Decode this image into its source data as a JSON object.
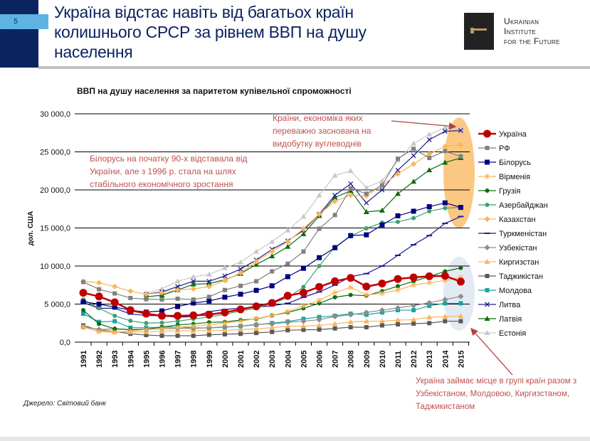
{
  "header": {
    "page_number": "5",
    "title": "Україна відстає навіть від багатьох країн колишнього СРСР за рівнем ВВП на душу населення",
    "logo_lines": [
      "Ukrainian",
      "Institute",
      "for the Future"
    ]
  },
  "annotations": {
    "belarus_note": "Білорусь на початку 90-х відставала від України, але з 1996 р. стала на шлях стабільного економічного зростання",
    "hydrocarbon_note": "Країни, економіка яких переважно заснована на видобутку вуглеводнів",
    "ukraine_group_note": "Україна займає місце в групі країн разом з Узбекістаном, Молдовою, Киргизстаном, Таджикистаном",
    "highlight_top_color": "#f9b55a",
    "highlight_bottom_color": "#dfe6f2"
  },
  "source": "Джерело: Світовий банк",
  "chart_data": {
    "type": "line",
    "title": "ВВП на душу населення за паритетом купівельної спроможності",
    "ylabel": "дол. США",
    "xlabel": "",
    "ylim": [
      0,
      30000
    ],
    "yticks": [
      "0,0",
      "5 000,0",
      "10 000,0",
      "15 000,0",
      "20 000,0",
      "25 000,0",
      "30 000,0"
    ],
    "grid": true,
    "legend_position": "right",
    "x": [
      1991,
      1992,
      1993,
      1994,
      1995,
      1996,
      1997,
      1998,
      1999,
      2000,
      2001,
      2002,
      2003,
      2004,
      2005,
      2006,
      2007,
      2008,
      2009,
      2010,
      2011,
      2012,
      2013,
      2014,
      2015
    ],
    "series": [
      {
        "name": "Україна",
        "color": "#c00000",
        "marker": "circle-big",
        "values": [
          6480,
          6000,
          5230,
          4200,
          3740,
          3460,
          3460,
          3520,
          3610,
          3900,
          4300,
          4700,
          5150,
          6100,
          6500,
          7260,
          8000,
          8440,
          7300,
          7700,
          8300,
          8500,
          8660,
          8700,
          7950
        ]
      },
      {
        "name": "РФ",
        "color": "#808080",
        "marker": "square",
        "values": [
          7900,
          6950,
          6400,
          5800,
          5640,
          5600,
          5700,
          5600,
          5950,
          6850,
          7400,
          8000,
          9300,
          10300,
          11900,
          14900,
          16700,
          20200,
          19500,
          20600,
          24100,
          25400,
          24200,
          25100,
          24400
        ]
      },
      {
        "name": "Білорусь",
        "color": "#00007f",
        "marker": "square-big",
        "values": [
          5300,
          5000,
          4600,
          4200,
          3950,
          4100,
          4670,
          5140,
          5400,
          5900,
          6300,
          6800,
          7400,
          8600,
          9700,
          11100,
          12400,
          14000,
          14100,
          15400,
          16600,
          17200,
          17800,
          18300,
          17700
        ]
      },
      {
        "name": "Вірменія",
        "color": "#f9b55a",
        "marker": "star",
        "values": [
          2000,
          1340,
          1280,
          1460,
          1650,
          1750,
          1960,
          2100,
          2270,
          2500,
          2750,
          3100,
          3500,
          4000,
          4770,
          5500,
          6500,
          7200,
          6200,
          6400,
          6850,
          7500,
          7800,
          8100,
          8500
        ]
      },
      {
        "name": "Грузія",
        "color": "#0e6b0e",
        "marker": "circle",
        "values": [
          4200,
          2400,
          1750,
          1650,
          1700,
          1960,
          2270,
          2400,
          2600,
          2650,
          2900,
          3050,
          3500,
          3900,
          4450,
          5100,
          5900,
          6200,
          6100,
          6700,
          7350,
          8000,
          8600,
          9300,
          9750
        ]
      },
      {
        "name": "Азербайджан",
        "color": "#3fa06f",
        "marker": "circle",
        "values": [
          5600,
          4450,
          3460,
          2800,
          2500,
          2550,
          2750,
          3050,
          3300,
          3650,
          4100,
          4450,
          5100,
          5800,
          7260,
          10000,
          12500,
          13900,
          14950,
          15700,
          15800,
          16300,
          17200,
          17600,
          17700
        ]
      },
      {
        "name": "Казахстан",
        "color": "#f9b55a",
        "marker": "diamond",
        "values": [
          8000,
          7800,
          7300,
          6700,
          6300,
          6500,
          6850,
          7000,
          7300,
          8100,
          9100,
          10600,
          11900,
          13200,
          14900,
          16800,
          18500,
          19300,
          19200,
          20600,
          22100,
          23400,
          24700,
          25700,
          25900
        ]
      },
      {
        "name": "Туркменістан",
        "color": "#1a1a9a",
        "marker": "dash",
        "values": [
          5200,
          4450,
          4450,
          3700,
          3500,
          3460,
          3270,
          3360,
          4000,
          4300,
          4450,
          4600,
          4770,
          5100,
          5900,
          6600,
          7500,
          8600,
          9000,
          10000,
          11400,
          12800,
          14000,
          15600,
          16500
        ]
      },
      {
        "name": "Узбекістан",
        "color": "#8c8c8c",
        "marker": "diamond",
        "values": [
          2000,
          1650,
          1750,
          1620,
          1650,
          1750,
          1800,
          1800,
          1900,
          2000,
          2100,
          2340,
          2400,
          2600,
          2750,
          2950,
          3360,
          3600,
          3900,
          4200,
          4500,
          4800,
          5170,
          5600,
          6000
        ]
      },
      {
        "name": "Киргизстан",
        "color": "#f9b55a",
        "marker": "triangle",
        "values": [
          1960,
          1700,
          1400,
          1340,
          1340,
          1430,
          1500,
          1500,
          1500,
          1560,
          1650,
          1750,
          1900,
          2100,
          2100,
          2200,
          2400,
          2650,
          2750,
          2750,
          2900,
          2950,
          3270,
          3360,
          3430
        ]
      },
      {
        "name": "Таджикістан",
        "color": "#595959",
        "marker": "square",
        "values": [
          2200,
          1560,
          1400,
          1100,
          930,
          840,
          840,
          840,
          970,
          1030,
          1100,
          1200,
          1340,
          1560,
          1620,
          1650,
          1800,
          1960,
          1960,
          2200,
          2340,
          2430,
          2500,
          2750,
          2750
        ]
      },
      {
        "name": "Молдова",
        "color": "#17a5a5",
        "marker": "square",
        "values": [
          3740,
          2650,
          2750,
          1900,
          1900,
          1960,
          2000,
          1870,
          1870,
          1960,
          2100,
          2270,
          2500,
          2700,
          3050,
          3300,
          3460,
          3740,
          3600,
          3900,
          4200,
          4200,
          4770,
          5100,
          5100
        ]
      },
      {
        "name": "Литва",
        "color": "#1f1f8f",
        "marker": "x",
        "values": [
          null,
          null,
          null,
          null,
          6300,
          6600,
          7300,
          8000,
          8000,
          8700,
          9600,
          10800,
          12200,
          13300,
          14700,
          16800,
          19300,
          20800,
          18300,
          20000,
          22600,
          24500,
          26600,
          27700,
          27800
        ]
      },
      {
        "name": "Латвія",
        "color": "#0e6b0e",
        "marker": "triangle",
        "values": [
          null,
          null,
          null,
          null,
          5950,
          6170,
          6850,
          7600,
          7700,
          8200,
          9000,
          10200,
          11300,
          12550,
          14200,
          16600,
          19000,
          19900,
          17100,
          17300,
          19500,
          21100,
          22600,
          23600,
          24200
        ]
      },
      {
        "name": "Естонія",
        "color": "#c8c8c8",
        "marker": "triangle",
        "values": [
          null,
          null,
          null,
          null,
          6400,
          7000,
          8000,
          8570,
          8900,
          9750,
          10500,
          11900,
          13200,
          14700,
          16500,
          19300,
          21900,
          22500,
          20300,
          21200,
          23900,
          26100,
          27300,
          28200,
          28100
        ]
      }
    ]
  }
}
